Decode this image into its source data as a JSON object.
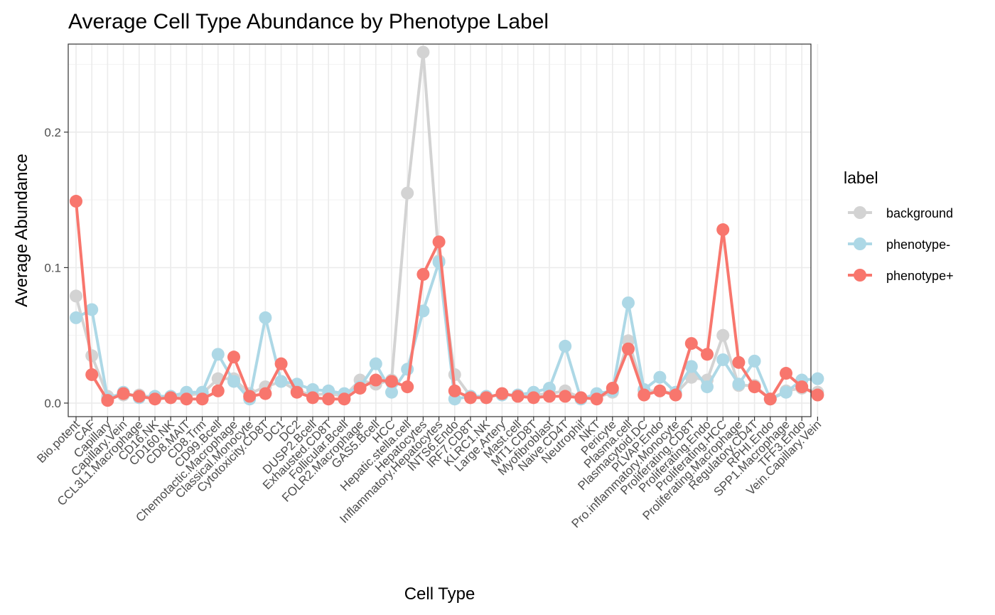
{
  "chart_data": {
    "type": "line",
    "title": "Average Cell Type Abundance by Phenotype Label",
    "xlabel": "Cell Type",
    "ylabel": "Average Abundance",
    "ylim": [
      -0.01,
      0.265
    ],
    "yticks": [
      0.0,
      0.1,
      0.2
    ],
    "ytick_labels": [
      "0.0",
      "0.1",
      "0.2"
    ],
    "grid": true,
    "legend": {
      "title": "label",
      "position": "right"
    },
    "categories": [
      "Bio.potent",
      "CAF",
      "Capillary",
      "Capillary.Vein",
      "CCL3L1.Macrophage",
      "CD16.NK",
      "CD160.NK",
      "CD8.MAIT",
      "CD8.Trm",
      "CD99.Bcell",
      "Chemotactic.Macrophage",
      "Classical.Monocyte",
      "Cytotoxicity.CD8T",
      "DC1",
      "DC2",
      "DUSP2.Bcell",
      "Exhausted.CD8T",
      "Follicular.Bcell",
      "FOLR2.Macrophage",
      "GAS5.Bcell",
      "HCC",
      "Hepatic.stella.cell",
      "Hepatocytes",
      "Inflammatory.Hepatocytes",
      "INTS6.Endo",
      "IRF7.CD8T",
      "KLRC1.NK",
      "Large.Artery",
      "Mast.cell",
      "MT1.CD8T",
      "Myofibroblast",
      "Naive.CD4T",
      "Neutrophil",
      "NKT",
      "Pericyte",
      "Plasma.cell",
      "Plasmacytoid.DC",
      "PLVAP.Endo",
      "Pro.inflammatory.Monocyte",
      "Proliferating.CD8T",
      "Proliferating.Endo",
      "Proliferating.HCC",
      "Proliferating.Macrophage",
      "Regulatory.CD4T",
      "RPHI.Endo",
      "SPP1.Macrophage",
      "TFF3.Endo",
      "Vein.Capillary.Vein"
    ],
    "series": [
      {
        "name": "background",
        "color": "#d3d3d3",
        "values": [
          0.079,
          0.035,
          0.005,
          0.006,
          0.006,
          0.004,
          0.004,
          0.006,
          0.007,
          0.018,
          0.018,
          0.007,
          0.012,
          0.016,
          0.009,
          0.006,
          0.007,
          0.005,
          0.017,
          0.014,
          0.017,
          0.155,
          0.259,
          0.105,
          0.021,
          0.005,
          0.004,
          0.007,
          0.005,
          0.006,
          0.007,
          0.009,
          0.004,
          0.004,
          0.008,
          0.046,
          0.009,
          0.009,
          0.007,
          0.019,
          0.017,
          0.05,
          0.013,
          0.013,
          0.003,
          0.009,
          0.011,
          0.008
        ]
      },
      {
        "name": "phenotype-",
        "color": "#add8e6",
        "values": [
          0.063,
          0.069,
          0.003,
          0.008,
          0.004,
          0.005,
          0.005,
          0.008,
          0.008,
          0.036,
          0.016,
          0.003,
          0.063,
          0.016,
          0.014,
          0.01,
          0.009,
          0.007,
          0.012,
          0.029,
          0.008,
          0.025,
          0.068,
          0.104,
          0.003,
          0.005,
          0.005,
          0.006,
          0.006,
          0.008,
          0.011,
          0.042,
          0.003,
          0.007,
          0.009,
          0.074,
          0.01,
          0.019,
          0.008,
          0.027,
          0.012,
          0.032,
          0.014,
          0.031,
          0.003,
          0.008,
          0.017,
          0.018
        ]
      },
      {
        "name": "phenotype+",
        "color": "#f8766d",
        "values": [
          0.149,
          0.021,
          0.002,
          0.007,
          0.005,
          0.003,
          0.004,
          0.003,
          0.003,
          0.009,
          0.034,
          0.005,
          0.007,
          0.029,
          0.008,
          0.004,
          0.003,
          0.003,
          0.011,
          0.017,
          0.016,
          0.012,
          0.095,
          0.119,
          0.009,
          0.004,
          0.004,
          0.007,
          0.005,
          0.004,
          0.005,
          0.005,
          0.004,
          0.003,
          0.011,
          0.04,
          0.006,
          0.009,
          0.006,
          0.044,
          0.036,
          0.128,
          0.03,
          0.012,
          0.003,
          0.022,
          0.012,
          0.006
        ]
      }
    ]
  }
}
